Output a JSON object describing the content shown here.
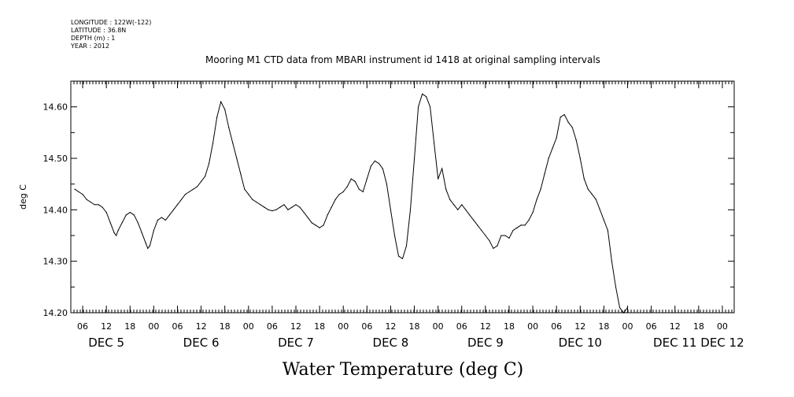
{
  "header": {
    "longitude": "LONGITUDE : 122W(-122)",
    "latitude": "LATITUDE : 36.8N",
    "depth": "DEPTH (m) : 1",
    "year": "YEAR : 2012"
  },
  "chart_data": {
    "type": "line",
    "title": "Mooring M1 CTD data from MBARI instrument id 1418 at original sampling intervals",
    "ylabel": "deg C",
    "xlabel": "Water Temperature (deg C)",
    "ylim": [
      14.2,
      14.65
    ],
    "xlim": [
      4.0,
      144.0
    ],
    "y_ticks": [
      "14.20",
      "14.30",
      "14.40",
      "14.50",
      "14.60"
    ],
    "hour_ticks": [
      "06",
      "12",
      "18",
      "00",
      "06",
      "12",
      "18",
      "00",
      "06",
      "12",
      "18",
      "00",
      "06",
      "12",
      "18",
      "00",
      "06",
      "12",
      "18",
      "00",
      "06",
      "12",
      "18",
      "00",
      "06",
      "12",
      "18",
      "00"
    ],
    "day_labels": [
      "DEC  5",
      "DEC  6",
      "DEC  7",
      "DEC  8",
      "DEC  9",
      "DEC 10",
      "DEC 11",
      "DEC 12"
    ],
    "x_unit": "hours since DEC 5 00:00",
    "series": [
      {
        "points": [
          [
            4.0,
            14.44
          ],
          [
            5.0,
            14.435
          ],
          [
            6.0,
            14.43
          ],
          [
            7.0,
            14.42
          ],
          [
            8.0,
            14.415
          ],
          [
            9.0,
            14.41
          ],
          [
            10.0,
            14.41
          ],
          [
            11.0,
            14.405
          ],
          [
            12.0,
            14.395
          ],
          [
            13.0,
            14.375
          ],
          [
            14.0,
            14.355
          ],
          [
            14.5,
            14.35
          ],
          [
            15.0,
            14.36
          ],
          [
            16.0,
            14.375
          ],
          [
            17.0,
            14.39
          ],
          [
            18.0,
            14.395
          ],
          [
            19.0,
            14.39
          ],
          [
            20.0,
            14.375
          ],
          [
            21.0,
            14.355
          ],
          [
            22.0,
            14.335
          ],
          [
            22.5,
            14.325
          ],
          [
            23.0,
            14.33
          ],
          [
            24.0,
            14.36
          ],
          [
            25.0,
            14.38
          ],
          [
            26.0,
            14.385
          ],
          [
            27.0,
            14.38
          ],
          [
            28.0,
            14.39
          ],
          [
            29.0,
            14.4
          ],
          [
            30.0,
            14.41
          ],
          [
            31.0,
            14.42
          ],
          [
            32.0,
            14.43
          ],
          [
            33.0,
            14.435
          ],
          [
            34.0,
            14.44
          ],
          [
            35.0,
            14.445
          ],
          [
            36.0,
            14.455
          ],
          [
            37.0,
            14.465
          ],
          [
            38.0,
            14.49
          ],
          [
            39.0,
            14.53
          ],
          [
            40.0,
            14.58
          ],
          [
            41.0,
            14.61
          ],
          [
            42.0,
            14.595
          ],
          [
            43.0,
            14.56
          ],
          [
            44.0,
            14.53
          ],
          [
            45.0,
            14.5
          ],
          [
            46.0,
            14.47
          ],
          [
            47.0,
            14.44
          ],
          [
            48.0,
            14.43
          ],
          [
            49.0,
            14.42
          ],
          [
            50.0,
            14.415
          ],
          [
            51.0,
            14.41
          ],
          [
            52.0,
            14.405
          ],
          [
            53.0,
            14.4
          ],
          [
            54.0,
            14.398
          ],
          [
            55.0,
            14.4
          ],
          [
            56.0,
            14.405
          ],
          [
            57.0,
            14.41
          ],
          [
            58.0,
            14.4
          ],
          [
            59.0,
            14.405
          ],
          [
            60.0,
            14.41
          ],
          [
            61.0,
            14.405
          ],
          [
            62.0,
            14.395
          ],
          [
            63.0,
            14.385
          ],
          [
            64.0,
            14.375
          ],
          [
            65.0,
            14.37
          ],
          [
            66.0,
            14.365
          ],
          [
            67.0,
            14.37
          ],
          [
            68.0,
            14.39
          ],
          [
            69.0,
            14.405
          ],
          [
            70.0,
            14.42
          ],
          [
            71.0,
            14.43
          ],
          [
            72.0,
            14.435
          ],
          [
            73.0,
            14.445
          ],
          [
            74.0,
            14.46
          ],
          [
            75.0,
            14.455
          ],
          [
            76.0,
            14.44
          ],
          [
            77.0,
            14.435
          ],
          [
            78.0,
            14.46
          ],
          [
            79.0,
            14.485
          ],
          [
            80.0,
            14.495
          ],
          [
            81.0,
            14.49
          ],
          [
            82.0,
            14.48
          ],
          [
            83.0,
            14.45
          ],
          [
            84.0,
            14.4
          ],
          [
            85.0,
            14.35
          ],
          [
            86.0,
            14.31
          ],
          [
            87.0,
            14.305
          ],
          [
            88.0,
            14.33
          ],
          [
            89.0,
            14.4
          ],
          [
            90.0,
            14.5
          ],
          [
            91.0,
            14.6
          ],
          [
            92.0,
            14.625
          ],
          [
            93.0,
            14.62
          ],
          [
            94.0,
            14.6
          ],
          [
            95.0,
            14.53
          ],
          [
            96.0,
            14.46
          ],
          [
            97.0,
            14.48
          ],
          [
            98.0,
            14.44
          ],
          [
            99.0,
            14.42
          ],
          [
            100.0,
            14.41
          ],
          [
            101.0,
            14.4
          ],
          [
            102.0,
            14.41
          ],
          [
            103.0,
            14.4
          ],
          [
            104.0,
            14.39
          ],
          [
            105.0,
            14.38
          ],
          [
            106.0,
            14.37
          ],
          [
            107.0,
            14.36
          ],
          [
            108.0,
            14.35
          ],
          [
            109.0,
            14.34
          ],
          [
            110.0,
            14.325
          ],
          [
            111.0,
            14.33
          ],
          [
            112.0,
            14.35
          ],
          [
            113.0,
            14.35
          ],
          [
            114.0,
            14.345
          ],
          [
            115.0,
            14.36
          ],
          [
            116.0,
            14.365
          ],
          [
            117.0,
            14.37
          ],
          [
            118.0,
            14.37
          ],
          [
            119.0,
            14.38
          ],
          [
            120.0,
            14.395
          ],
          [
            121.0,
            14.42
          ],
          [
            122.0,
            14.44
          ],
          [
            123.0,
            14.47
          ],
          [
            124.0,
            14.5
          ],
          [
            125.0,
            14.52
          ],
          [
            126.0,
            14.54
          ],
          [
            127.0,
            14.58
          ],
          [
            128.0,
            14.585
          ],
          [
            129.0,
            14.57
          ],
          [
            130.0,
            14.56
          ],
          [
            131.0,
            14.535
          ],
          [
            132.0,
            14.5
          ],
          [
            133.0,
            14.46
          ],
          [
            134.0,
            14.44
          ],
          [
            135.0,
            14.43
          ],
          [
            136.0,
            14.42
          ],
          [
            137.0,
            14.4
          ],
          [
            138.0,
            14.38
          ],
          [
            139.0,
            14.36
          ],
          [
            140.0,
            14.3
          ],
          [
            141.0,
            14.25
          ],
          [
            142.0,
            14.21
          ],
          [
            143.0,
            14.2
          ],
          [
            144.0,
            14.21
          ]
        ]
      }
    ]
  }
}
